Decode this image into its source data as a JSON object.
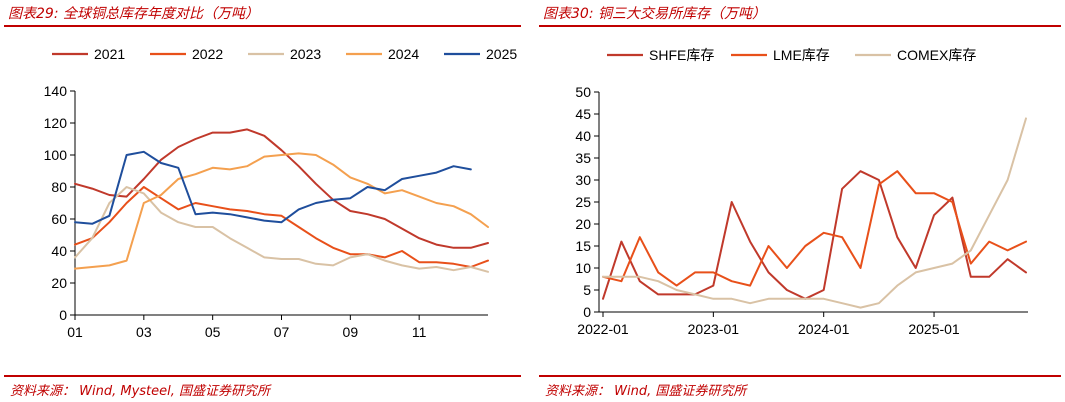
{
  "left": {
    "caption": "图表29:  全球铜总库存年度对比（万吨）",
    "source": "资料来源：  Wind,  Mysteel,  国盛证券研究所"
  },
  "right": {
    "caption": "图表30:  铜三大交易所库存（万吨）",
    "source": "资料来源：  Wind,  国盛证券研究所"
  },
  "chart_data": [
    {
      "type": "line",
      "title": "全球铜总库存年度对比（万吨）",
      "xlabel": "",
      "ylabel": "",
      "x_ticks": [
        "01",
        "03",
        "05",
        "07",
        "09",
        "11"
      ],
      "x": [
        1,
        1.5,
        2,
        2.5,
        3,
        3.5,
        4,
        4.5,
        5,
        5.5,
        6,
        6.5,
        7,
        7.5,
        8,
        8.5,
        9,
        9.5,
        10,
        10.5,
        11,
        11.5,
        12,
        12.5,
        13
      ],
      "ylim": [
        0,
        140
      ],
      "y_ticks": [
        0,
        20,
        40,
        60,
        80,
        100,
        120,
        140
      ],
      "legend_position": "top",
      "series": [
        {
          "name": "2021",
          "color": "#c0392b",
          "values": [
            82,
            79,
            75,
            74,
            85,
            97,
            105,
            110,
            114,
            114,
            116,
            112,
            103,
            93,
            82,
            72,
            65,
            63,
            60,
            54,
            48,
            44,
            42,
            42,
            45
          ]
        },
        {
          "name": "2022",
          "color": "#e8501a",
          "values": [
            44,
            48,
            58,
            70,
            80,
            73,
            66,
            70,
            68,
            66,
            65,
            63,
            62,
            55,
            48,
            42,
            38,
            38,
            36,
            40,
            33,
            33,
            32,
            30,
            34
          ]
        },
        {
          "name": "2023",
          "color": "#d9c2a5",
          "values": [
            36,
            48,
            70,
            80,
            76,
            64,
            58,
            55,
            55,
            48,
            42,
            36,
            35,
            35,
            32,
            31,
            36,
            38,
            34,
            31,
            29,
            30,
            28,
            30,
            27
          ]
        },
        {
          "name": "2024",
          "color": "#f4a04f",
          "values": [
            29,
            30,
            31,
            34,
            70,
            75,
            85,
            88,
            92,
            91,
            93,
            99,
            100,
            101,
            100,
            94,
            86,
            82,
            76,
            78,
            74,
            70,
            68,
            63,
            55
          ]
        },
        {
          "name": "2025",
          "color": "#1f4e9c",
          "values": [
            58,
            57,
            62,
            100,
            102,
            95,
            92,
            63,
            64,
            63,
            61,
            59,
            58,
            66,
            70,
            72,
            73,
            80,
            78,
            85,
            87,
            89,
            93,
            91,
            null
          ]
        }
      ]
    },
    {
      "type": "line",
      "title": "铜三大交易所库存（万吨）",
      "xlabel": "",
      "ylabel": "",
      "x_ticks": [
        "2022-01",
        "2023-01",
        "2024-01",
        "2025-01"
      ],
      "x": [
        "2022-01",
        "2022-03",
        "2022-05",
        "2022-07",
        "2022-09",
        "2022-11",
        "2023-01",
        "2023-03",
        "2023-05",
        "2023-07",
        "2023-09",
        "2023-11",
        "2024-01",
        "2024-03",
        "2024-05",
        "2024-07",
        "2024-09",
        "2024-11",
        "2025-01",
        "2025-03",
        "2025-05",
        "2025-07",
        "2025-09",
        "2025-11"
      ],
      "ylim": [
        0,
        50
      ],
      "y_ticks": [
        0,
        5,
        10,
        15,
        20,
        25,
        30,
        35,
        40,
        45,
        50
      ],
      "legend_position": "top",
      "series": [
        {
          "name": "SHFE库存",
          "color": "#c0392b",
          "values": [
            3,
            16,
            7,
            4,
            4,
            4,
            6,
            25,
            16,
            9,
            5,
            3,
            5,
            28,
            32,
            30,
            17,
            10,
            22,
            26,
            8,
            8,
            12,
            9
          ]
        },
        {
          "name": "LME库存",
          "color": "#e8501a",
          "values": [
            8,
            7,
            17,
            9,
            6,
            9,
            9,
            7,
            6,
            15,
            10,
            15,
            18,
            17,
            10,
            29,
            32,
            27,
            27,
            25,
            11,
            16,
            14,
            16
          ]
        },
        {
          "name": "COMEX库存",
          "color": "#d9c2a5",
          "values": [
            8,
            8,
            8,
            7,
            5,
            4,
            3,
            3,
            2,
            3,
            3,
            3,
            3,
            2,
            1,
            2,
            6,
            9,
            10,
            11,
            14,
            22,
            30,
            44
          ]
        }
      ]
    }
  ]
}
